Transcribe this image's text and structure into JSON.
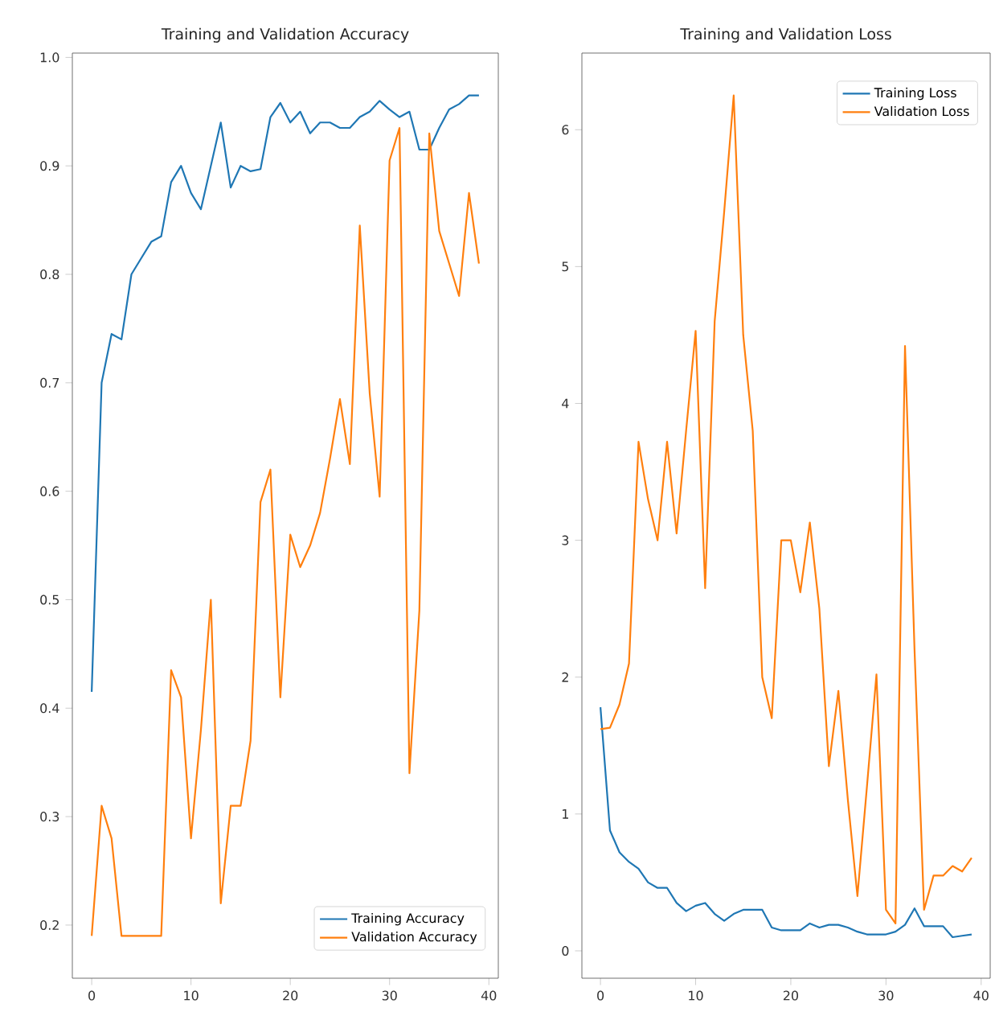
{
  "chart_data": [
    {
      "type": "line",
      "title": "Training and Validation Accuracy",
      "x": [
        0,
        1,
        2,
        3,
        4,
        5,
        6,
        7,
        8,
        9,
        10,
        11,
        12,
        13,
        14,
        15,
        16,
        17,
        18,
        19,
        20,
        21,
        22,
        23,
        24,
        25,
        26,
        27,
        28,
        29,
        30,
        31,
        32,
        33,
        34,
        35,
        36,
        37,
        38,
        39
      ],
      "series": [
        {
          "name": "Training Accuracy",
          "color": "#1f77b4",
          "values": [
            0.415,
            0.7,
            0.745,
            0.74,
            0.8,
            0.815,
            0.83,
            0.835,
            0.885,
            0.9,
            0.875,
            0.86,
            0.9,
            0.94,
            0.88,
            0.9,
            0.895,
            0.897,
            0.945,
            0.958,
            0.94,
            0.95,
            0.93,
            0.94,
            0.94,
            0.935,
            0.935,
            0.945,
            0.95,
            0.96,
            0.952,
            0.945,
            0.95,
            0.915,
            0.915,
            0.935,
            0.952,
            0.957,
            0.965,
            0.965
          ]
        },
        {
          "name": "Validation Accuracy",
          "color": "#ff7f0e",
          "values": [
            0.19,
            0.31,
            0.28,
            0.19,
            0.19,
            0.19,
            0.19,
            0.19,
            0.435,
            0.41,
            0.28,
            0.38,
            0.5,
            0.22,
            0.31,
            0.31,
            0.37,
            0.59,
            0.62,
            0.41,
            0.56,
            0.53,
            0.55,
            0.58,
            0.63,
            0.685,
            0.625,
            0.845,
            0.69,
            0.595,
            0.905,
            0.935,
            0.34,
            0.49,
            0.93,
            0.84,
            0.81,
            0.78,
            0.875,
            0.81
          ]
        }
      ],
      "xlim": [
        -1.95,
        40.95
      ],
      "ylim": [
        0.151,
        1.004
      ],
      "xticks": [
        0,
        10,
        20,
        30,
        40
      ],
      "yticks": [
        0.2,
        0.3,
        0.4,
        0.5,
        0.6,
        0.7,
        0.8,
        0.9,
        {
          "value": 1.0,
          "label": "1.0"
        }
      ],
      "legend": "bottom right",
      "line_style": "solid"
    },
    {
      "type": "line",
      "title": "Training and Validation Loss",
      "x": [
        0,
        1,
        2,
        3,
        4,
        5,
        6,
        7,
        8,
        9,
        10,
        11,
        12,
        13,
        14,
        15,
        16,
        17,
        18,
        19,
        20,
        21,
        22,
        23,
        24,
        25,
        26,
        27,
        28,
        29,
        30,
        31,
        32,
        33,
        34,
        35,
        36,
        37,
        38,
        39
      ],
      "series": [
        {
          "name": "Training Loss",
          "color": "#1f77b4",
          "values": [
            1.78,
            0.88,
            0.72,
            0.65,
            0.6,
            0.5,
            0.46,
            0.46,
            0.35,
            0.29,
            0.33,
            0.35,
            0.27,
            0.22,
            0.27,
            0.3,
            0.3,
            0.3,
            0.17,
            0.15,
            0.15,
            0.15,
            0.2,
            0.17,
            0.19,
            0.19,
            0.17,
            0.14,
            0.12,
            0.12,
            0.12,
            0.14,
            0.19,
            0.31,
            0.18,
            0.18,
            0.18,
            0.1,
            0.11,
            0.12
          ]
        },
        {
          "name": "Validation Loss",
          "color": "#ff7f0e",
          "values": [
            1.62,
            1.63,
            1.8,
            2.1,
            3.72,
            3.3,
            3.0,
            3.72,
            3.05,
            3.8,
            4.53,
            2.65,
            4.6,
            5.4,
            6.25,
            4.5,
            3.8,
            2.0,
            1.7,
            3.0,
            3.0,
            2.62,
            3.13,
            2.5,
            1.35,
            1.9,
            1.1,
            0.4,
            1.2,
            2.02,
            0.3,
            0.2,
            4.42,
            2.2,
            0.3,
            0.55,
            0.55,
            0.62,
            0.58,
            0.68
          ]
        }
      ],
      "xlim": [
        -1.95,
        40.95
      ],
      "ylim": [
        -0.2,
        6.56
      ],
      "xticks": [
        0,
        10,
        20,
        30,
        40
      ],
      "yticks": [
        0,
        1,
        2,
        3,
        4,
        5,
        6
      ],
      "legend": "top right",
      "line_style": "solid"
    }
  ]
}
